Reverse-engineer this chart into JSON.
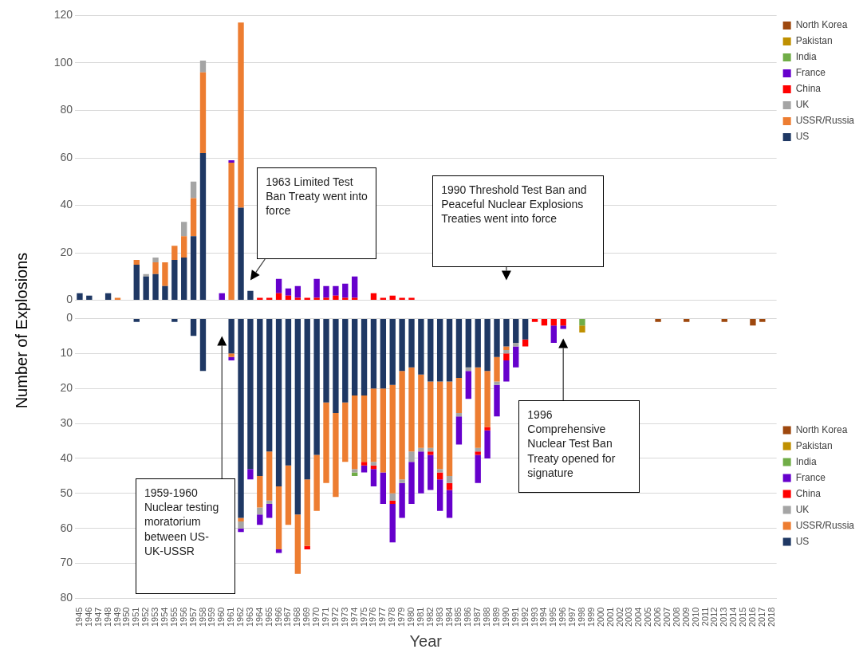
{
  "chart_data": [
    {
      "type": "bar",
      "ylabel": "Number of Explosions",
      "stacked": true,
      "grid": "y",
      "legend": "top right",
      "tick_labels": "y",
      "categories": [
        "1945",
        "1946",
        "1947",
        "1948",
        "1949",
        "1950",
        "1951",
        "1952",
        "1953",
        "1954",
        "1955",
        "1956",
        "1957",
        "1958",
        "1959",
        "1960",
        "1961",
        "1962",
        "1963",
        "1964",
        "1965",
        "1966",
        "1967",
        "1968",
        "1969",
        "1970",
        "1971",
        "1972",
        "1973",
        "1974",
        "1975",
        "1976",
        "1977",
        "1978",
        "1979",
        "1980",
        "1981",
        "1982",
        "1983",
        "1984",
        "1985",
        "1986",
        "1987",
        "1988",
        "1989",
        "1990",
        "1991",
        "1992",
        "1993",
        "1994",
        "1995",
        "1996",
        "1997",
        "1998",
        "1999",
        "2000",
        "2001",
        "2002",
        "2003",
        "2004",
        "2005",
        "2006",
        "2007",
        "2008",
        "2009",
        "2010",
        "2011",
        "2012",
        "2013",
        "2014",
        "2015",
        "2016",
        "2017",
        "2018"
      ],
      "ylim": [
        0,
        120
      ],
      "yticks": [
        0,
        20,
        40,
        60,
        80,
        100,
        120
      ],
      "series": [
        {
          "name": "US",
          "color": "#1f3864",
          "values": [
            3,
            2,
            null,
            3,
            null,
            null,
            15,
            10,
            11,
            6,
            17,
            18,
            27,
            62,
            null,
            null,
            null,
            39,
            4,
            null,
            null,
            null,
            null,
            null,
            null,
            null,
            null,
            null,
            null,
            null,
            null,
            null,
            null,
            null,
            null,
            null,
            null,
            null,
            null,
            null,
            null,
            null,
            null,
            null,
            null,
            null,
            null,
            null,
            null,
            null,
            null,
            null,
            null,
            null,
            null,
            null,
            null,
            null,
            null,
            null,
            null,
            null,
            null,
            null,
            null,
            null,
            null,
            null,
            null,
            null,
            null,
            null,
            null,
            null
          ]
        },
        {
          "name": "USSR/Russia",
          "color": "#ed7d31",
          "values": [
            null,
            null,
            null,
            null,
            1,
            null,
            2,
            null,
            5,
            10,
            6,
            9,
            16,
            34,
            null,
            null,
            58,
            78,
            null,
            null,
            null,
            null,
            null,
            null,
            null,
            null,
            null,
            null,
            null,
            null,
            null,
            null,
            null,
            null,
            null,
            null,
            null,
            null,
            null,
            null,
            null,
            null,
            null,
            null,
            null,
            null,
            null,
            null,
            null,
            null,
            null,
            null,
            null,
            null,
            null,
            null,
            null,
            null,
            null,
            null,
            null,
            null,
            null,
            null,
            null,
            null,
            null,
            null,
            null,
            null,
            null,
            null,
            null,
            null
          ]
        },
        {
          "name": "UK",
          "color": "#a5a5a5",
          "values": [
            null,
            null,
            null,
            null,
            null,
            null,
            null,
            1,
            2,
            null,
            null,
            6,
            7,
            5,
            null,
            null,
            null,
            null,
            null,
            null,
            null,
            null,
            null,
            null,
            null,
            null,
            null,
            null,
            null,
            null,
            null,
            null,
            null,
            null,
            null,
            null,
            null,
            null,
            null,
            null,
            null,
            null,
            null,
            null,
            null,
            null,
            null,
            null,
            null,
            null,
            null,
            null,
            null,
            null,
            null,
            null,
            null,
            null,
            null,
            null,
            null,
            null,
            null,
            null,
            null,
            null,
            null,
            null,
            null,
            null,
            null,
            null,
            null,
            null
          ]
        },
        {
          "name": "China",
          "color": "#ff0000",
          "values": [
            null,
            null,
            null,
            null,
            null,
            null,
            null,
            null,
            null,
            null,
            null,
            null,
            null,
            null,
            null,
            null,
            null,
            null,
            null,
            1,
            1,
            3,
            2,
            1,
            1,
            1,
            1,
            2,
            1,
            1,
            null,
            3,
            1,
            2,
            1,
            1,
            null,
            null,
            null,
            null,
            null,
            null,
            null,
            null,
            null,
            null,
            null,
            null,
            null,
            null,
            null,
            null,
            null,
            null,
            null,
            null,
            null,
            null,
            null,
            null,
            null,
            null,
            null,
            null,
            null,
            null,
            null,
            null,
            null,
            null,
            null,
            null,
            null,
            null
          ]
        },
        {
          "name": "France",
          "color": "#6600cc",
          "values": [
            null,
            null,
            null,
            null,
            null,
            null,
            null,
            null,
            null,
            null,
            null,
            null,
            null,
            null,
            null,
            3,
            1,
            null,
            null,
            null,
            null,
            6,
            3,
            5,
            null,
            8,
            5,
            4,
            6,
            9,
            null,
            null,
            null,
            null,
            null,
            null,
            null,
            null,
            null,
            null,
            null,
            null,
            null,
            null,
            null,
            null,
            null,
            null,
            null,
            null,
            null,
            null,
            null,
            null,
            null,
            null,
            null,
            null,
            null,
            null,
            null,
            null,
            null,
            null,
            null,
            null,
            null,
            null,
            null,
            null,
            null,
            null,
            null,
            null
          ]
        },
        {
          "name": "India",
          "color": "#70ad47",
          "values": [
            null,
            null,
            null,
            null,
            null,
            null,
            null,
            null,
            null,
            null,
            null,
            null,
            null,
            null,
            null,
            null,
            null,
            null,
            null,
            null,
            null,
            null,
            null,
            null,
            null,
            null,
            null,
            null,
            null,
            null,
            null,
            null,
            null,
            null,
            null,
            null,
            null,
            null,
            null,
            null,
            null,
            null,
            null,
            null,
            null,
            null,
            null,
            null,
            null,
            null,
            null,
            null,
            null,
            null,
            null,
            null,
            null,
            null,
            null,
            null,
            null,
            null,
            null,
            null,
            null,
            null,
            null,
            null,
            null,
            null,
            null,
            null,
            null,
            null
          ]
        },
        {
          "name": "Pakistan",
          "color": "#bf9000",
          "values": [
            null,
            null,
            null,
            null,
            null,
            null,
            null,
            null,
            null,
            null,
            null,
            null,
            null,
            null,
            null,
            null,
            null,
            null,
            null,
            null,
            null,
            null,
            null,
            null,
            null,
            null,
            null,
            null,
            null,
            null,
            null,
            null,
            null,
            null,
            null,
            null,
            null,
            null,
            null,
            null,
            null,
            null,
            null,
            null,
            null,
            null,
            null,
            null,
            null,
            null,
            null,
            null,
            null,
            null,
            null,
            null,
            null,
            null,
            null,
            null,
            null,
            null,
            null,
            null,
            null,
            null,
            null,
            null,
            null,
            null,
            null,
            null,
            null,
            null
          ]
        },
        {
          "name": "North Korea",
          "color": "#9e480e",
          "values": [
            null,
            null,
            null,
            null,
            null,
            null,
            null,
            null,
            null,
            null,
            null,
            null,
            null,
            null,
            null,
            null,
            null,
            null,
            null,
            null,
            null,
            null,
            null,
            null,
            null,
            null,
            null,
            null,
            null,
            null,
            null,
            null,
            null,
            null,
            null,
            null,
            null,
            null,
            null,
            null,
            null,
            null,
            null,
            null,
            null,
            null,
            null,
            null,
            null,
            null,
            null,
            null,
            null,
            null,
            null,
            null,
            null,
            null,
            null,
            null,
            null,
            null,
            null,
            null,
            null,
            null,
            null,
            null,
            null,
            null,
            null,
            null,
            null,
            null
          ]
        }
      ],
      "annotations": [
        "1963 Limited Test Ban Treaty went into force",
        "1990 Threshold Test Ban and Peaceful Nuclear Explosions Treaties went into force"
      ]
    },
    {
      "type": "bar",
      "xlabel": "Year",
      "stacked": true,
      "grid": "y",
      "legend": "right",
      "categories": [
        "1945",
        "1946",
        "1947",
        "1948",
        "1949",
        "1950",
        "1951",
        "1952",
        "1953",
        "1954",
        "1955",
        "1956",
        "1957",
        "1958",
        "1959",
        "1960",
        "1961",
        "1962",
        "1963",
        "1964",
        "1965",
        "1966",
        "1967",
        "1968",
        "1969",
        "1970",
        "1971",
        "1972",
        "1973",
        "1974",
        "1975",
        "1976",
        "1977",
        "1978",
        "1979",
        "1980",
        "1981",
        "1982",
        "1983",
        "1984",
        "1985",
        "1986",
        "1987",
        "1988",
        "1989",
        "1990",
        "1991",
        "1992",
        "1993",
        "1994",
        "1995",
        "1996",
        "1997",
        "1998",
        "1999",
        "2000",
        "2001",
        "2002",
        "2003",
        "2004",
        "2005",
        "2006",
        "2007",
        "2008",
        "2009",
        "2010",
        "2011",
        "2012",
        "2013",
        "2014",
        "2015",
        "2016",
        "2017",
        "2018"
      ],
      "ylim": [
        80,
        0
      ],
      "yticks": [
        0,
        10,
        20,
        30,
        40,
        50,
        60,
        70,
        80
      ],
      "series": [
        {
          "name": "US",
          "color": "#1f3864",
          "values": [
            null,
            null,
            null,
            null,
            null,
            null,
            1,
            null,
            null,
            null,
            1,
            null,
            5,
            15,
            null,
            null,
            10,
            57,
            43,
            45,
            38,
            48,
            42,
            56,
            46,
            39,
            24,
            27,
            24,
            22,
            22,
            20,
            20,
            19,
            15,
            14,
            16,
            18,
            18,
            18,
            17,
            14,
            14,
            15,
            11,
            8,
            7,
            6,
            null,
            null,
            null,
            null,
            null,
            null,
            null,
            null,
            null,
            null,
            null,
            null,
            null,
            null,
            null,
            null,
            null,
            null,
            null,
            null,
            null,
            null,
            null,
            null,
            null,
            null
          ]
        },
        {
          "name": "USSR/Russia",
          "color": "#ed7d31",
          "values": [
            null,
            null,
            null,
            null,
            null,
            null,
            null,
            null,
            null,
            null,
            null,
            null,
            null,
            null,
            null,
            null,
            1,
            1,
            null,
            9,
            14,
            18,
            17,
            17,
            19,
            16,
            23,
            24,
            17,
            21,
            19,
            21,
            24,
            31,
            31,
            24,
            21,
            19,
            25,
            27,
            10,
            null,
            23,
            16,
            7,
            1,
            null,
            null,
            null,
            null,
            null,
            null,
            null,
            null,
            null,
            null,
            null,
            null,
            null,
            null,
            null,
            null,
            null,
            null,
            null,
            null,
            null,
            null,
            null,
            null,
            null,
            null,
            null,
            null
          ]
        },
        {
          "name": "UK",
          "color": "#a5a5a5",
          "values": [
            null,
            null,
            null,
            null,
            null,
            null,
            null,
            null,
            null,
            null,
            null,
            null,
            null,
            null,
            null,
            null,
            null,
            2,
            null,
            2,
            1,
            null,
            null,
            null,
            null,
            null,
            null,
            null,
            null,
            1,
            null,
            1,
            null,
            2,
            1,
            3,
            1,
            1,
            1,
            2,
            1,
            1,
            1,
            null,
            1,
            1,
            1,
            null,
            null,
            null,
            null,
            null,
            null,
            null,
            null,
            null,
            null,
            null,
            null,
            null,
            null,
            null,
            null,
            null,
            null,
            null,
            null,
            null,
            null,
            null,
            null,
            null,
            null,
            null
          ]
        },
        {
          "name": "China",
          "color": "#ff0000",
          "values": [
            null,
            null,
            null,
            null,
            null,
            null,
            null,
            null,
            null,
            null,
            null,
            null,
            null,
            null,
            null,
            null,
            null,
            null,
            null,
            null,
            null,
            null,
            null,
            null,
            1,
            null,
            null,
            null,
            null,
            null,
            1,
            1,
            null,
            1,
            null,
            null,
            null,
            1,
            2,
            2,
            null,
            null,
            1,
            1,
            null,
            2,
            null,
            2,
            1,
            2,
            2,
            2,
            null,
            null,
            null,
            null,
            null,
            null,
            null,
            null,
            null,
            null,
            null,
            null,
            null,
            null,
            null,
            null,
            null,
            null,
            null,
            null,
            null,
            null
          ]
        },
        {
          "name": "France",
          "color": "#6600cc",
          "values": [
            null,
            null,
            null,
            null,
            null,
            null,
            null,
            null,
            null,
            null,
            null,
            null,
            null,
            null,
            null,
            null,
            1,
            1,
            3,
            3,
            4,
            1,
            null,
            null,
            null,
            null,
            null,
            null,
            null,
            null,
            2,
            5,
            9,
            11,
            10,
            12,
            12,
            10,
            9,
            8,
            8,
            8,
            8,
            8,
            9,
            6,
            6,
            null,
            null,
            null,
            5,
            1,
            null,
            null,
            null,
            null,
            null,
            null,
            null,
            null,
            null,
            null,
            null,
            null,
            null,
            null,
            null,
            null,
            null,
            null,
            null,
            null,
            null,
            null
          ]
        },
        {
          "name": "India",
          "color": "#70ad47",
          "values": [
            null,
            null,
            null,
            null,
            null,
            null,
            null,
            null,
            null,
            null,
            null,
            null,
            null,
            null,
            null,
            null,
            null,
            null,
            null,
            null,
            null,
            null,
            null,
            null,
            null,
            null,
            null,
            null,
            null,
            1,
            null,
            null,
            null,
            null,
            null,
            null,
            null,
            null,
            null,
            null,
            null,
            null,
            null,
            null,
            null,
            null,
            null,
            null,
            null,
            null,
            null,
            null,
            null,
            2,
            null,
            null,
            null,
            null,
            null,
            null,
            null,
            null,
            null,
            null,
            null,
            null,
            null,
            null,
            null,
            null,
            null,
            null,
            null,
            null
          ]
        },
        {
          "name": "Pakistan",
          "color": "#bf9000",
          "values": [
            null,
            null,
            null,
            null,
            null,
            null,
            null,
            null,
            null,
            null,
            null,
            null,
            null,
            null,
            null,
            null,
            null,
            null,
            null,
            null,
            null,
            null,
            null,
            null,
            null,
            null,
            null,
            null,
            null,
            null,
            null,
            null,
            null,
            null,
            null,
            null,
            null,
            null,
            null,
            null,
            null,
            null,
            null,
            null,
            null,
            null,
            null,
            null,
            null,
            null,
            null,
            null,
            null,
            2,
            null,
            null,
            null,
            null,
            null,
            null,
            null,
            null,
            null,
            null,
            null,
            null,
            null,
            null,
            null,
            null,
            null,
            null,
            null,
            null
          ]
        },
        {
          "name": "North Korea",
          "color": "#9e480e",
          "values": [
            null,
            null,
            null,
            null,
            null,
            null,
            null,
            null,
            null,
            null,
            null,
            null,
            null,
            null,
            null,
            null,
            null,
            null,
            null,
            null,
            null,
            null,
            null,
            null,
            null,
            null,
            null,
            null,
            null,
            null,
            null,
            null,
            null,
            null,
            null,
            null,
            null,
            null,
            null,
            null,
            null,
            null,
            null,
            null,
            null,
            null,
            null,
            null,
            null,
            null,
            null,
            null,
            null,
            null,
            null,
            null,
            null,
            null,
            null,
            null,
            null,
            1,
            null,
            null,
            1,
            null,
            null,
            null,
            1,
            null,
            null,
            2,
            1,
            null
          ]
        }
      ],
      "annotations": [
        "1959-1960 Nuclear testing moratorium between US-UK-USSR",
        "1996 Comprehensive Nuclear Test Ban Treaty opened for signature"
      ]
    }
  ]
}
